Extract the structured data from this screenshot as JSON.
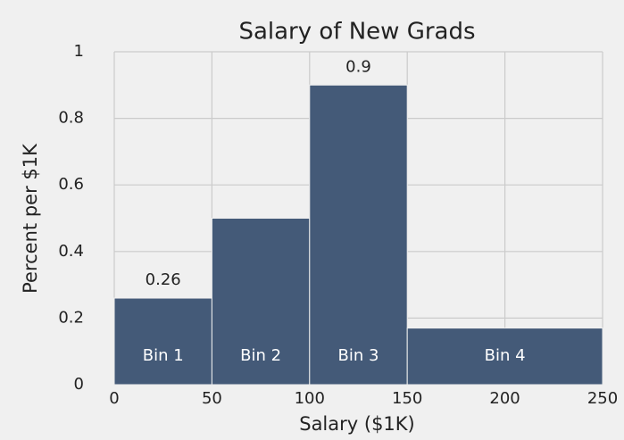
{
  "chart_data": {
    "type": "histogram",
    "title": "Salary of New Grads",
    "xlabel": "Salary ($1K)",
    "ylabel": "Percent per $1K",
    "bins": [
      0,
      50,
      100,
      150,
      250
    ],
    "values": [
      0.26,
      0.5,
      0.9,
      0.17
    ],
    "value_labels": [
      "0.26",
      null,
      "0.9",
      null
    ],
    "bin_labels": [
      "Bin 1",
      "Bin 2",
      "Bin 3",
      "Bin 4"
    ],
    "color": "#445a78",
    "xlim": [
      0,
      250
    ],
    "ylim": [
      0,
      1
    ],
    "xticks": [
      0,
      50,
      100,
      150,
      200,
      250
    ],
    "yticks": [
      0,
      0.2,
      0.4,
      0.6,
      0.8,
      1
    ],
    "grid": true
  }
}
